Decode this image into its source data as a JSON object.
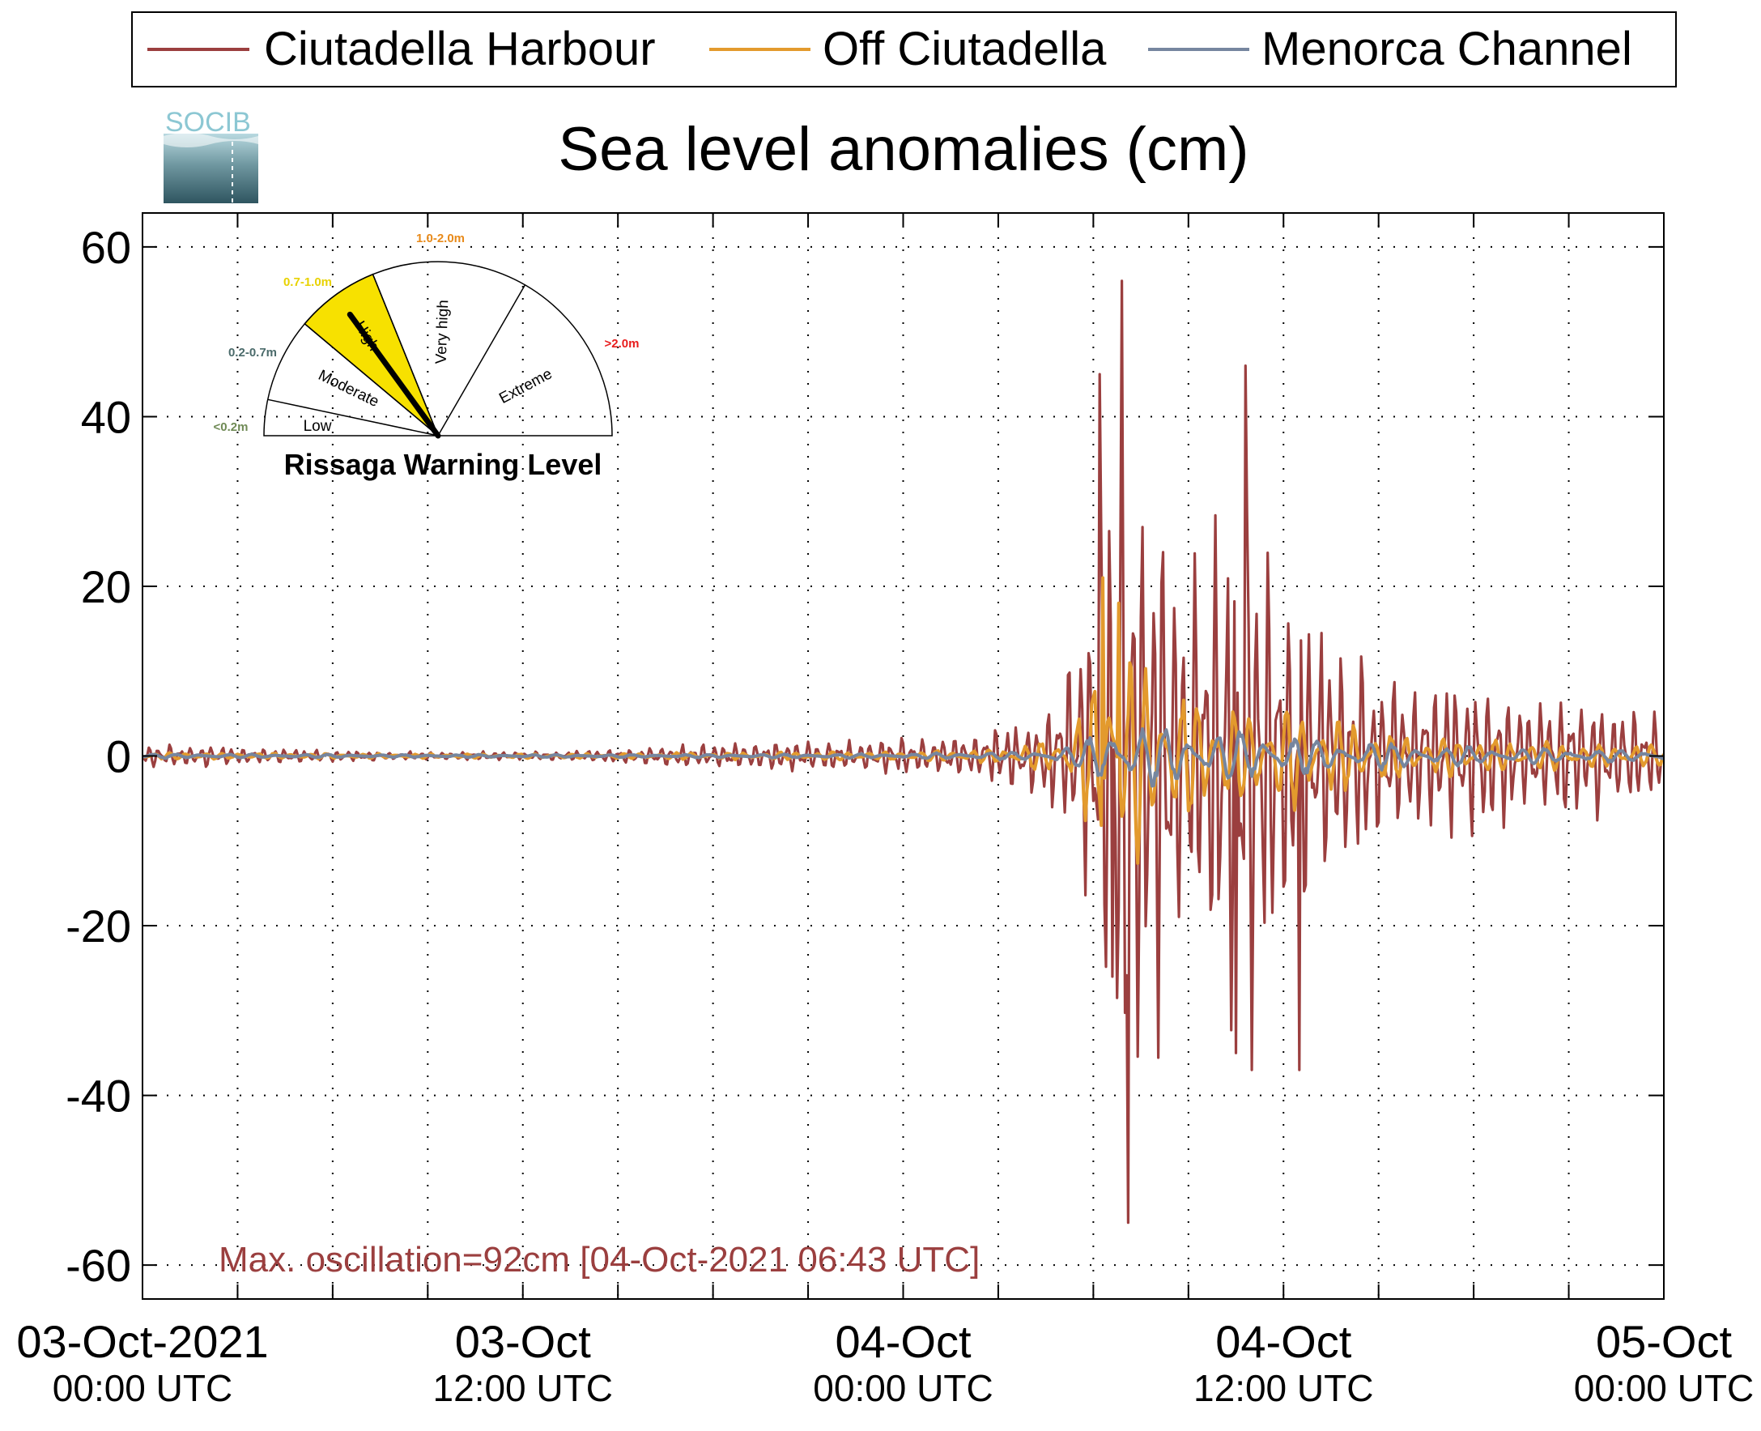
{
  "chart_data": {
    "type": "line",
    "title": "Sea level anomalies (cm)",
    "xlabel": "",
    "ylabel": "",
    "xlim_hours": [
      0,
      48
    ],
    "ylim": [
      -64,
      64
    ],
    "yticks": [
      60,
      40,
      20,
      0,
      -20,
      -40,
      -60
    ],
    "ytick_labels": [
      "60",
      "40",
      "20",
      "0",
      "-20",
      "-40",
      "-60"
    ],
    "xtick_labels": [
      {
        "date": "03-Oct-2021",
        "time": "00:00 UTC",
        "hour": 0
      },
      {
        "date": "03-Oct",
        "time": "12:00 UTC",
        "hour": 12
      },
      {
        "date": "04-Oct",
        "time": "00:00 UTC",
        "hour": 24
      },
      {
        "date": "04-Oct",
        "time": "12:00 UTC",
        "hour": 36
      },
      {
        "date": "05-Oct",
        "time": "00:00 UTC",
        "hour": 48
      }
    ],
    "grid": true,
    "legend_position": "top",
    "series": [
      {
        "name": "Ciutadella Harbour",
        "color": "#9b3f3f",
        "envelope_hours": [
          0,
          2,
          4,
          6,
          8,
          10,
          12,
          14,
          16,
          18,
          20,
          22,
          24,
          26,
          28,
          29,
          30,
          30.5,
          31,
          32,
          33,
          34,
          35,
          36,
          37,
          38,
          40,
          42,
          44,
          46,
          48
        ],
        "envelope_cm": [
          1.5,
          1.5,
          1.0,
          0.8,
          0.6,
          0.6,
          0.5,
          0.8,
          1.2,
          1.8,
          2.2,
          2.0,
          2.5,
          3.0,
          5.0,
          10,
          20,
          45,
          50,
          38,
          22,
          35,
          40,
          25,
          20,
          16,
          12,
          11,
          9,
          8,
          6
        ],
        "peaks": [
          {
            "hour": 30.2,
            "value": 45
          },
          {
            "hour": 30.6,
            "value": -26
          },
          {
            "hour": 30.9,
            "value": 56
          },
          {
            "hour": 31.1,
            "value": -55
          },
          {
            "hour": 34.5,
            "value": -35
          },
          {
            "hour": 34.8,
            "value": 46
          },
          {
            "hour": 35.0,
            "value": -37
          },
          {
            "hour": 36.5,
            "value": -37
          }
        ]
      },
      {
        "name": "Off Ciutadella",
        "color": "#e39a2d",
        "envelope_hours": [
          0,
          4,
          8,
          12,
          16,
          20,
          24,
          27,
          29,
          30,
          30.5,
          31,
          32,
          34,
          36,
          38,
          40,
          44,
          48
        ],
        "envelope_cm": [
          0.5,
          0.4,
          0.3,
          0.3,
          0.4,
          0.5,
          0.6,
          1.0,
          2.5,
          10,
          20,
          15,
          10,
          8,
          7,
          5,
          3,
          2,
          1.5
        ],
        "peaks": [
          {
            "hour": 30.3,
            "value": 21
          },
          {
            "hour": 30.8,
            "value": 18
          }
        ]
      },
      {
        "name": "Menorca Channel",
        "color": "#76869f",
        "envelope_hours": [
          0,
          8,
          16,
          24,
          28,
          29.5,
          30.5,
          32,
          34,
          36,
          38,
          42,
          48
        ],
        "envelope_cm": [
          0.3,
          0.2,
          0.2,
          0.3,
          0.6,
          1.5,
          4.5,
          4.0,
          3.5,
          3.0,
          2.0,
          1.2,
          0.8
        ],
        "peaks": []
      }
    ],
    "annotation": "Max. oscillation=92cm [04-Oct-2021 06:43 UTC]",
    "annotation_color": "#9b3f3f"
  },
  "logo": {
    "text": "SOCIB"
  },
  "gauge": {
    "title": "Rissaga Warning Level",
    "needle_level": "High",
    "sectors": [
      {
        "label": "Low",
        "range": "<0.2m",
        "range_color": "#6f8a55"
      },
      {
        "label": "Moderate",
        "range": "0.2-0.7m",
        "range_color": "#4b6b6b"
      },
      {
        "label": "High",
        "range": "0.7-1.0m",
        "range_color": "#e8d200",
        "fill": "#f7e100"
      },
      {
        "label": "Very high",
        "range": "1.0-2.0m",
        "range_color": "#e88a1a"
      },
      {
        "label": "Extreme",
        "range": ">2.0m",
        "range_color": "#e81c1c"
      }
    ]
  }
}
